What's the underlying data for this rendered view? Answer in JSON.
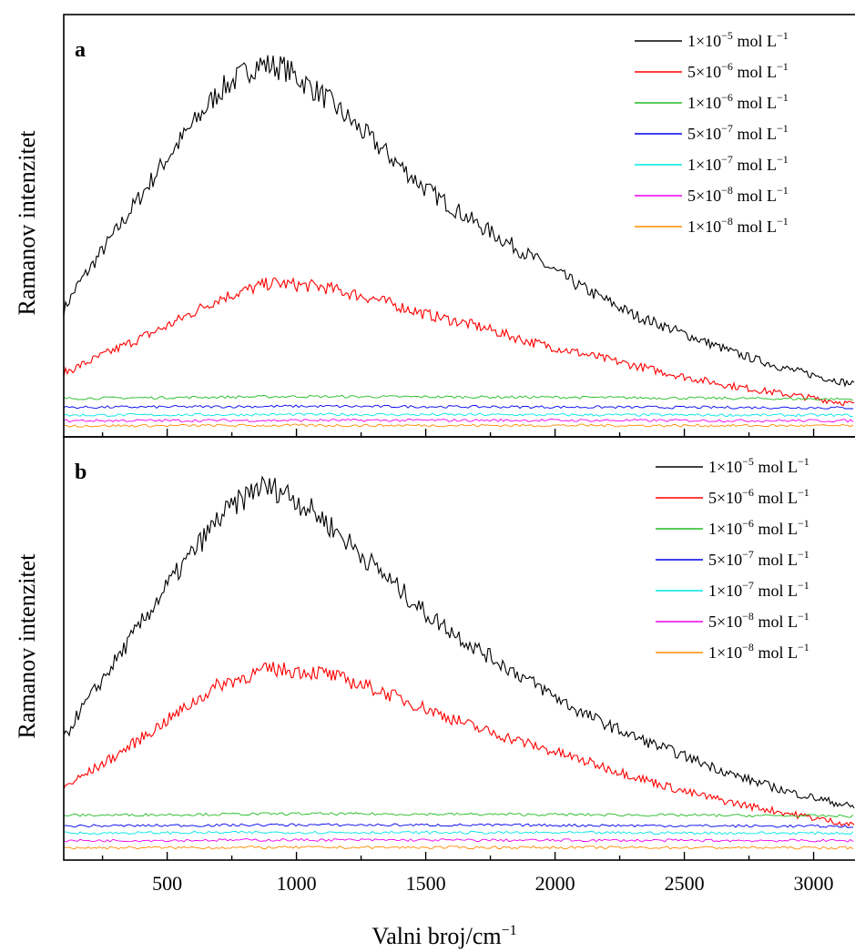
{
  "chart_data": {
    "type": "line",
    "xlabel": "Valni broj/cm",
    "xlabel_sup": "−1",
    "ylabel": "Ramanov intenzitet",
    "xlim": [
      100,
      3160
    ],
    "xticks": [
      500,
      1000,
      1500,
      2000,
      2500,
      3000
    ],
    "xtick_labels": [
      "500",
      "1000",
      "1500",
      "2000",
      "2500",
      "3000"
    ],
    "grid": false,
    "legend_position": "top-right",
    "series_colors": [
      "#000000",
      "#ff0000",
      "#22bb22",
      "#0000ee",
      "#00e5e5",
      "#ee00ee",
      "#ff8c00"
    ],
    "legend_labels": [
      {
        "mantissa": "1×10",
        "exp": "−5",
        "unit": " mol L",
        "unit_exp": "−1"
      },
      {
        "mantissa": "5×10",
        "exp": "−6",
        "unit": " mol L",
        "unit_exp": "−1"
      },
      {
        "mantissa": "1×10",
        "exp": "−6",
        "unit": " mol L",
        "unit_exp": "−1"
      },
      {
        "mantissa": "5×10",
        "exp": "−7",
        "unit": " mol L",
        "unit_exp": "−1"
      },
      {
        "mantissa": "1×10",
        "exp": "−7",
        "unit": " mol L",
        "unit_exp": "−1"
      },
      {
        "mantissa": "5×10",
        "exp": "−8",
        "unit": " mol L",
        "unit_exp": "−1"
      },
      {
        "mantissa": "1×10",
        "exp": "−8",
        "unit": " mol L",
        "unit_exp": "−1"
      }
    ],
    "panels": [
      {
        "letter": "a",
        "ylim": [
          0,
          100
        ],
        "series": [
          {
            "color": "#000000",
            "x": [
              100,
              150,
              300,
              500,
              700,
              850,
              950,
              1100,
              1300,
              1500,
              1700,
              1900,
              2100,
              2300,
              2500,
              2700,
              2900,
              3160
            ],
            "y": [
              30,
              36,
              50,
              69,
              86,
              93,
              92,
              85,
              73,
              61,
              52,
              44,
              36,
              29,
              24,
              19,
              15,
              11
            ]
          },
          {
            "color": "#ff0000",
            "x": [
              100,
              300,
              500,
              700,
              900,
              1100,
              1300,
              1500,
              1700,
              1900,
              2100,
              2300,
              2500,
              2700,
              2900,
              3160
            ],
            "y": [
              14,
              20,
              26,
              33,
              37,
              36,
              33,
              29,
              26,
              22,
              19,
              16,
              13,
              10.5,
              8.5,
              6
            ]
          },
          {
            "color": "#22bb22",
            "x": [
              100,
              1000,
              2000,
              3160
            ],
            "y": [
              7.5,
              8,
              7.8,
              7.3
            ]
          },
          {
            "color": "#0000ee",
            "x": [
              100,
              1000,
              2000,
              3160
            ],
            "y": [
              5.2,
              5.5,
              5.3,
              5.1
            ]
          },
          {
            "color": "#00e5e5",
            "x": [
              100,
              1000,
              2000,
              3160
            ],
            "y": [
              3.2,
              3.4,
              3.3,
              3.2
            ]
          },
          {
            "color": "#ee00ee",
            "x": [
              100,
              1000,
              2000,
              3160
            ],
            "y": [
              1.8,
              1.9,
              1.9,
              1.8
            ]
          },
          {
            "color": "#ff8c00",
            "x": [
              100,
              1000,
              2000,
              3160
            ],
            "y": [
              0.5,
              0.6,
              0.6,
              0.5
            ]
          }
        ]
      },
      {
        "letter": "b",
        "ylim": [
          0,
          100
        ],
        "series": [
          {
            "color": "#000000",
            "x": [
              100,
              150,
              300,
              500,
              700,
              850,
              950,
              1100,
              1300,
              1500,
              1700,
              1900,
              2100,
              2300,
              2500,
              2700,
              2900,
              3160
            ],
            "y": [
              28,
              34,
              48,
              67,
              84,
              92,
              91,
              84,
              72,
              60,
              51,
              43,
              35,
              29,
              24,
              19,
              15,
              11
            ]
          },
          {
            "color": "#ff0000",
            "x": [
              100,
              300,
              500,
              700,
              900,
              1100,
              1300,
              1500,
              1700,
              1900,
              2100,
              2300,
              2500,
              2700,
              2900,
              3160
            ],
            "y": [
              16,
              24,
              33,
              42,
              46,
              45,
              41,
              36,
              31,
              27,
              23,
              19,
              15,
              12,
              9.5,
              6.5
            ]
          },
          {
            "color": "#22bb22",
            "x": [
              100,
              1000,
              2000,
              3160
            ],
            "y": [
              9,
              9.4,
              9.2,
              8.8
            ]
          },
          {
            "color": "#0000ee",
            "x": [
              100,
              1000,
              2000,
              3160
            ],
            "y": [
              6.3,
              6.6,
              6.5,
              6.2
            ]
          },
          {
            "color": "#00e5e5",
            "x": [
              100,
              1000,
              2000,
              3160
            ],
            "y": [
              4.5,
              4.7,
              4.6,
              4.5
            ]
          },
          {
            "color": "#ee00ee",
            "x": [
              100,
              1000,
              2000,
              3160
            ],
            "y": [
              2.6,
              2.8,
              2.7,
              2.6
            ]
          },
          {
            "color": "#ff8c00",
            "x": [
              100,
              1000,
              2000,
              3160
            ],
            "y": [
              0.8,
              0.9,
              0.9,
              0.8
            ]
          }
        ]
      }
    ]
  }
}
